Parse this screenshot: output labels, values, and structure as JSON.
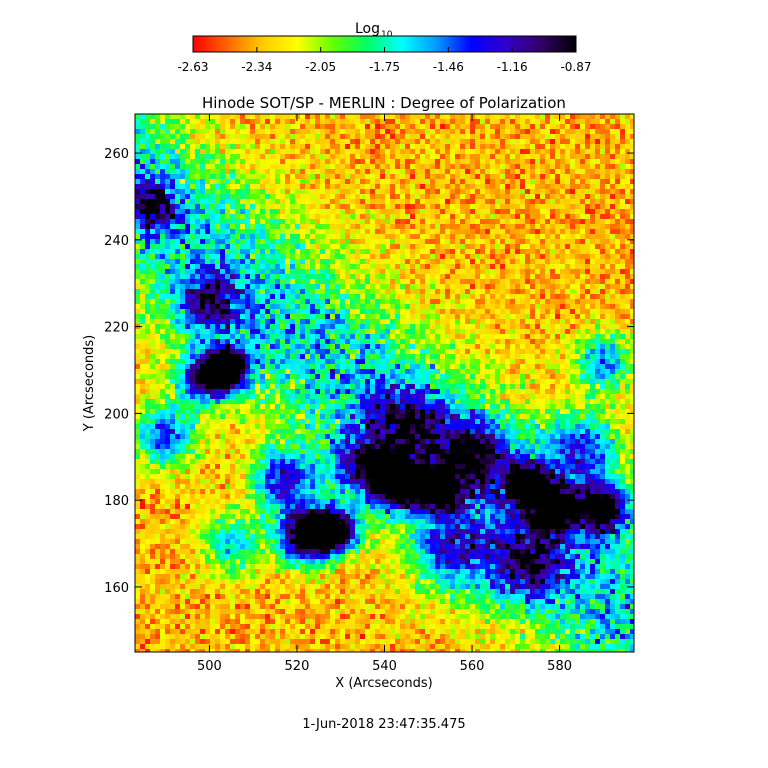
{
  "chart_data": {
    "type": "heatmap",
    "title": "Hinode SOT/SP - MERLIN : Degree of Polarization",
    "xlabel": "X (Arcseconds)",
    "ylabel": "Y (Arcseconds)",
    "xlim": [
      483,
      597
    ],
    "ylim": [
      145,
      269
    ],
    "x_ticks": [
      500,
      520,
      540,
      560,
      580
    ],
    "y_ticks": [
      160,
      180,
      200,
      220,
      240,
      260
    ],
    "colorbar": {
      "label": "Log",
      "label_subscript": "10",
      "range": [
        -2.63,
        -0.87
      ],
      "ticks": [
        "-2.63",
        "-2.34",
        "-2.05",
        "-1.75",
        "-1.46",
        "-1.16",
        "-0.87"
      ],
      "colormap": [
        "#ff0000",
        "#ff6600",
        "#ffcc00",
        "#ffff00",
        "#66ff00",
        "#00ff66",
        "#00ffff",
        "#0099ff",
        "#0000ff",
        "#3300cc",
        "#330066",
        "#000000"
      ]
    },
    "grid": false,
    "blobs": [
      {
        "x": 504,
        "y": 210,
        "strength": 1.0,
        "radius": 3.5
      },
      {
        "x": 522,
        "y": 172,
        "strength": 1.0,
        "radius": 4.5
      },
      {
        "x": 529,
        "y": 173,
        "strength": 0.95,
        "radius": 3.5
      },
      {
        "x": 543,
        "y": 184,
        "strength": 1.0,
        "radius": 4.0
      },
      {
        "x": 552,
        "y": 182,
        "strength": 0.9,
        "radius": 3.0
      },
      {
        "x": 573,
        "y": 183,
        "strength": 0.9,
        "radius": 3.5
      },
      {
        "x": 579,
        "y": 178,
        "strength": 0.95,
        "radius": 3.5
      },
      {
        "x": 590,
        "y": 178,
        "strength": 0.8,
        "radius": 4.0
      },
      {
        "x": 498,
        "y": 208,
        "strength": 0.6,
        "radius": 4.0
      },
      {
        "x": 490,
        "y": 195,
        "strength": 0.55,
        "radius": 5.0
      },
      {
        "x": 517,
        "y": 185,
        "strength": 0.6,
        "radius": 5.0
      },
      {
        "x": 535,
        "y": 188,
        "strength": 0.55,
        "radius": 5.0
      },
      {
        "x": 560,
        "y": 190,
        "strength": 0.55,
        "radius": 6.0
      },
      {
        "x": 585,
        "y": 192,
        "strength": 0.5,
        "radius": 6.0
      },
      {
        "x": 572,
        "y": 165,
        "strength": 0.5,
        "radius": 6.0
      },
      {
        "x": 487,
        "y": 248,
        "strength": 0.5,
        "radius": 4.0
      },
      {
        "x": 500,
        "y": 225,
        "strength": 0.45,
        "radius": 5.0
      },
      {
        "x": 545,
        "y": 198,
        "strength": 0.45,
        "radius": 6.0
      },
      {
        "x": 590,
        "y": 212,
        "strength": 0.45,
        "radius": 5.0
      },
      {
        "x": 505,
        "y": 170,
        "strength": 0.4,
        "radius": 5.0
      },
      {
        "x": 555,
        "y": 168,
        "strength": 0.45,
        "radius": 6.0
      }
    ]
  },
  "footer": {
    "timestamp": "1-Jun-2018 23:47:35.475"
  }
}
